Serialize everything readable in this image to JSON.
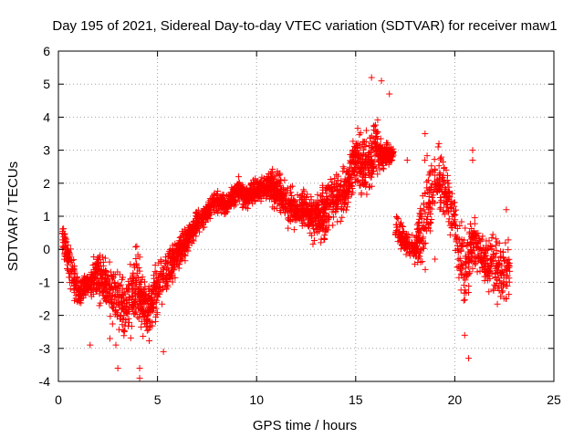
{
  "chart_data": {
    "type": "scatter",
    "title": "Day 195 of 2021, Sidereal Day-to-day VTEC variation (SDTVAR) for receiver maw1",
    "xlabel": "GPS time / hours",
    "ylabel": "SDTVAR / TECUs",
    "xlim": [
      0,
      25
    ],
    "ylim": [
      -4,
      6
    ],
    "xticks": [
      0,
      5,
      10,
      15,
      20,
      25
    ],
    "yticks": [
      -4,
      -3,
      -2,
      -1,
      0,
      1,
      2,
      3,
      4,
      5,
      6
    ],
    "grid": true,
    "marker": "+",
    "color": "#ff0000",
    "series": [
      {
        "name": "SDTVAR",
        "trend": [
          {
            "x": 0.2,
            "mean": 0.4,
            "spread": 0.6
          },
          {
            "x": 0.6,
            "mean": -0.6,
            "spread": 0.9
          },
          {
            "x": 1.0,
            "mean": -1.3,
            "spread": 0.6
          },
          {
            "x": 1.5,
            "mean": -1.0,
            "spread": 0.5
          },
          {
            "x": 2.0,
            "mean": -0.8,
            "spread": 1.0
          },
          {
            "x": 2.5,
            "mean": -1.2,
            "spread": 1.2
          },
          {
            "x": 3.0,
            "mean": -1.5,
            "spread": 1.3
          },
          {
            "x": 3.5,
            "mean": -1.7,
            "spread": 1.2
          },
          {
            "x": 4.0,
            "mean": -1.0,
            "spread": 1.5
          },
          {
            "x": 4.5,
            "mean": -2.0,
            "spread": 1.0
          },
          {
            "x": 5.0,
            "mean": -1.2,
            "spread": 1.2
          },
          {
            "x": 5.5,
            "mean": -0.6,
            "spread": 1.0
          },
          {
            "x": 6.0,
            "mean": -0.2,
            "spread": 0.8
          },
          {
            "x": 6.5,
            "mean": 0.3,
            "spread": 0.6
          },
          {
            "x": 7.0,
            "mean": 0.8,
            "spread": 0.5
          },
          {
            "x": 7.5,
            "mean": 1.1,
            "spread": 0.4
          },
          {
            "x": 8.0,
            "mean": 1.5,
            "spread": 0.5
          },
          {
            "x": 8.5,
            "mean": 1.3,
            "spread": 0.4
          },
          {
            "x": 9.0,
            "mean": 1.8,
            "spread": 0.5
          },
          {
            "x": 9.5,
            "mean": 1.6,
            "spread": 0.5
          },
          {
            "x": 10.0,
            "mean": 1.8,
            "spread": 0.5
          },
          {
            "x": 10.5,
            "mean": 1.9,
            "spread": 0.6
          },
          {
            "x": 11.0,
            "mean": 1.8,
            "spread": 0.8
          },
          {
            "x": 11.5,
            "mean": 1.4,
            "spread": 0.8
          },
          {
            "x": 12.0,
            "mean": 1.2,
            "spread": 0.8
          },
          {
            "x": 12.5,
            "mean": 1.2,
            "spread": 0.7
          },
          {
            "x": 13.0,
            "mean": 0.8,
            "spread": 1.0
          },
          {
            "x": 13.5,
            "mean": 1.2,
            "spread": 1.2
          },
          {
            "x": 14.0,
            "mean": 1.5,
            "spread": 1.2
          },
          {
            "x": 14.5,
            "mean": 1.8,
            "spread": 1.0
          },
          {
            "x": 15.0,
            "mean": 2.8,
            "spread": 1.2
          },
          {
            "x": 15.5,
            "mean": 2.5,
            "spread": 1.3
          },
          {
            "x": 16.0,
            "mean": 3.0,
            "spread": 1.2
          },
          {
            "x": 16.4,
            "mean": 2.8,
            "spread": 0.6
          },
          {
            "x": 16.9,
            "mean": 2.9,
            "spread": 0.3
          }
        ],
        "gap_after_x": 16.9,
        "trend_late": [
          {
            "x": 17.0,
            "mean": 0.7,
            "spread": 0.6
          },
          {
            "x": 17.5,
            "mean": 0.2,
            "spread": 0.5
          },
          {
            "x": 18.0,
            "mean": 0.0,
            "spread": 0.6
          },
          {
            "x": 18.5,
            "mean": 1.0,
            "spread": 2.2
          },
          {
            "x": 19.0,
            "mean": 2.0,
            "spread": 1.2
          },
          {
            "x": 19.5,
            "mean": 1.8,
            "spread": 1.2
          },
          {
            "x": 20.0,
            "mean": 0.8,
            "spread": 1.0
          },
          {
            "x": 20.5,
            "mean": -0.8,
            "spread": 1.8
          },
          {
            "x": 21.0,
            "mean": 0.2,
            "spread": 1.2
          },
          {
            "x": 21.5,
            "mean": -0.4,
            "spread": 0.8
          },
          {
            "x": 22.0,
            "mean": -0.4,
            "spread": 1.4
          },
          {
            "x": 22.5,
            "mean": -0.8,
            "spread": 1.2
          },
          {
            "x": 22.8,
            "mean": -0.4,
            "spread": 1.0
          }
        ],
        "outliers": [
          {
            "x": 3.0,
            "y": -3.6
          },
          {
            "x": 4.1,
            "y": -3.9
          },
          {
            "x": 4.1,
            "y": -3.6
          },
          {
            "x": 5.3,
            "y": -3.1
          },
          {
            "x": 1.6,
            "y": -2.9
          },
          {
            "x": 2.9,
            "y": -2.9
          },
          {
            "x": 2.6,
            "y": -2.7
          },
          {
            "x": 15.8,
            "y": 5.2
          },
          {
            "x": 16.3,
            "y": 5.1
          },
          {
            "x": 16.7,
            "y": 4.7
          },
          {
            "x": 18.5,
            "y": 3.5
          },
          {
            "x": 20.9,
            "y": 3.0
          },
          {
            "x": 20.9,
            "y": 2.7
          },
          {
            "x": 20.7,
            "y": -3.3
          },
          {
            "x": 20.5,
            "y": -2.6
          },
          {
            "x": 19.2,
            "y": 3.2
          },
          {
            "x": 17.6,
            "y": 2.7
          },
          {
            "x": 22.6,
            "y": 1.2
          },
          {
            "x": 22.6,
            "y": -1.5
          },
          {
            "x": 19.0,
            "y": -0.3
          }
        ]
      }
    ]
  }
}
